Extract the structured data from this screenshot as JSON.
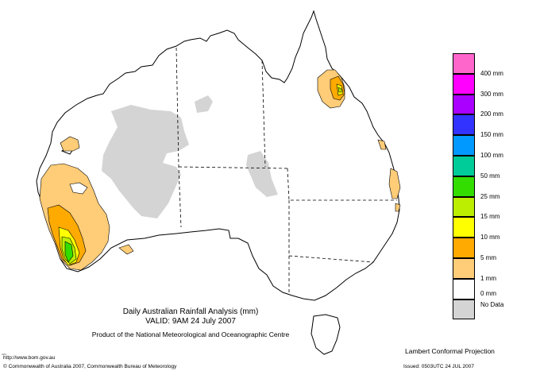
{
  "title": "Daily Australian Rainfall Analysis (mm)",
  "valid": "VALID: 9AM 24 July 2007",
  "producer": "Product of the National Meteorological and Oceanographic Centre",
  "projection": "Lambert Conformal Projection",
  "url": "http://www.bom.gov.au",
  "copyright": "© Commonwealth of Australia 2007, Commonwealth Bureau of Meteorology",
  "issued": "Issued: 0503UTC 24 JUL 2007",
  "legend": [
    {
      "label": "400 mm",
      "color": "#ff66cc"
    },
    {
      "label": "300 mm",
      "color": "#ff00ff"
    },
    {
      "label": "200 mm",
      "color": "#aa00ff"
    },
    {
      "label": "150 mm",
      "color": "#3333ff"
    },
    {
      "label": "100 mm",
      "color": "#0099ff"
    },
    {
      "label": "50 mm",
      "color": "#00cc99"
    },
    {
      "label": "25 mm",
      "color": "#33dd00"
    },
    {
      "label": "15 mm",
      "color": "#bbee00"
    },
    {
      "label": "10 mm",
      "color": "#ffff00"
    },
    {
      "label": "5 mm",
      "color": "#ffaa00"
    },
    {
      "label": "1 mm",
      "color": "#ffcc77"
    },
    {
      "label": "0 mm",
      "color": "#ffffff"
    },
    {
      "label": "No Data",
      "color": "#d4d4d4"
    }
  ]
}
